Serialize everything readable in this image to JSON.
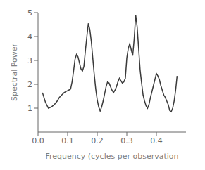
{
  "chart_data": {
    "type": "line",
    "xlabel": "Frequency (cycles per observation",
    "ylabel": "Spectral Power",
    "color": "#3a3a3a",
    "grid": false,
    "xlim": [
      0,
      0.5
    ],
    "ylim": [
      0,
      5
    ],
    "xticks": [
      {
        "value": 0,
        "label": "0.0"
      },
      0.1,
      0.2,
      0.3,
      0.4
    ],
    "yticks": [
      1,
      2,
      3,
      4,
      5
    ],
    "x": [
      0.015,
      0.025,
      0.035,
      0.045,
      0.055,
      0.065,
      0.072,
      0.08,
      0.088,
      0.095,
      0.103,
      0.11,
      0.115,
      0.12,
      0.125,
      0.13,
      0.135,
      0.14,
      0.145,
      0.15,
      0.155,
      0.16,
      0.165,
      0.17,
      0.175,
      0.18,
      0.185,
      0.19,
      0.195,
      0.2,
      0.205,
      0.21,
      0.215,
      0.22,
      0.225,
      0.23,
      0.235,
      0.24,
      0.245,
      0.25,
      0.255,
      0.26,
      0.265,
      0.27,
      0.275,
      0.28,
      0.285,
      0.29,
      0.295,
      0.3,
      0.305,
      0.31,
      0.315,
      0.32,
      0.325,
      0.33,
      0.335,
      0.34,
      0.345,
      0.35,
      0.355,
      0.36,
      0.365,
      0.37,
      0.375,
      0.38,
      0.385,
      0.39,
      0.395,
      0.4,
      0.405,
      0.41,
      0.415,
      0.42,
      0.425,
      0.43,
      0.435,
      0.44,
      0.445,
      0.45,
      0.455,
      0.46,
      0.465,
      0.47
    ],
    "values": [
      1.65,
      1.25,
      1.0,
      1.05,
      1.15,
      1.3,
      1.45,
      1.55,
      1.65,
      1.7,
      1.75,
      1.8,
      2.1,
      2.55,
      3.05,
      3.25,
      3.15,
      2.9,
      2.65,
      2.55,
      2.75,
      3.4,
      4.0,
      4.55,
      4.3,
      3.8,
      3.1,
      2.4,
      1.8,
      1.35,
      1.05,
      0.88,
      1.05,
      1.3,
      1.6,
      1.9,
      2.1,
      2.05,
      1.9,
      1.75,
      1.65,
      1.75,
      1.9,
      2.1,
      2.25,
      2.15,
      2.05,
      2.1,
      2.25,
      3.1,
      3.5,
      3.7,
      3.45,
      3.2,
      3.9,
      4.9,
      4.4,
      3.5,
      2.6,
      2.05,
      1.55,
      1.3,
      1.1,
      1.0,
      1.15,
      1.45,
      1.7,
      1.95,
      2.2,
      2.45,
      2.35,
      2.2,
      1.95,
      1.75,
      1.55,
      1.45,
      1.3,
      1.15,
      0.9,
      0.85,
      1.0,
      1.3,
      1.75,
      2.35
    ]
  }
}
